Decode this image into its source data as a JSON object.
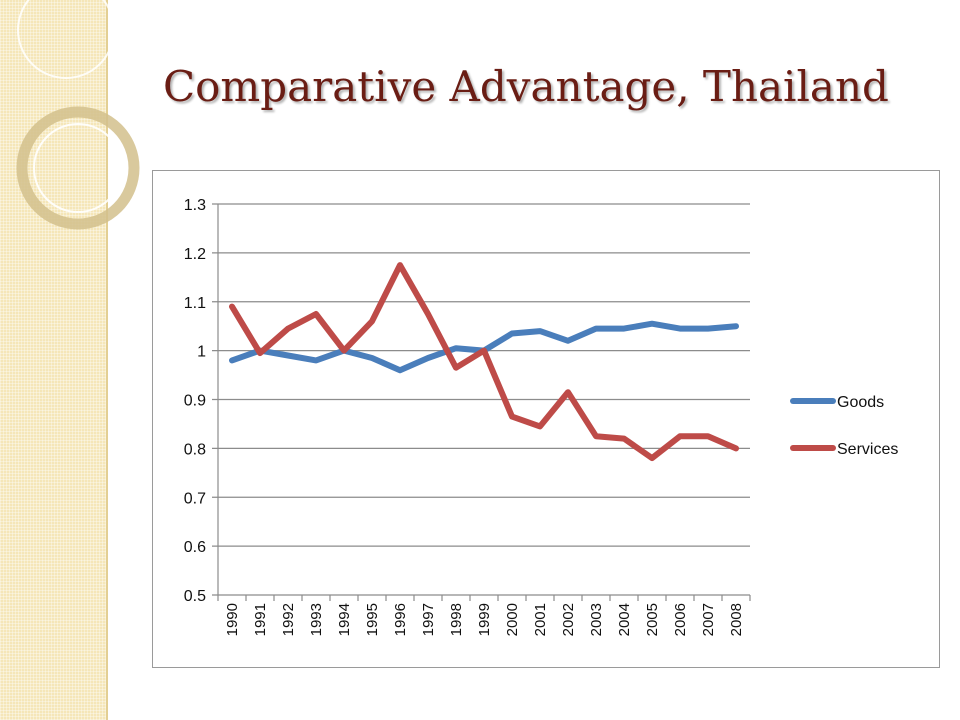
{
  "slide": {
    "title": "Comparative Advantage, Thailand"
  },
  "colors": {
    "goods": "#4a7ebb",
    "services": "#be4b48",
    "title": "#6a1d14",
    "grid": "#8c8c8c"
  },
  "chart_data": {
    "type": "line",
    "title": "",
    "xlabel": "",
    "ylabel": "",
    "x": [
      "1990",
      "1991",
      "1992",
      "1993",
      "1994",
      "1995",
      "1996",
      "1997",
      "1998",
      "1999",
      "2000",
      "2001",
      "2002",
      "2003",
      "2004",
      "2005",
      "2006",
      "2007",
      "2008"
    ],
    "ylim": [
      0.5,
      1.3
    ],
    "yticks": [
      "0.5",
      "0.6",
      "0.7",
      "0.8",
      "0.9",
      "1",
      "1.1",
      "1.2",
      "1.3"
    ],
    "grid": true,
    "legend_position": "right",
    "series": [
      {
        "name": "Goods",
        "values": [
          0.98,
          1.0,
          0.99,
          0.98,
          1.0,
          0.985,
          0.96,
          0.985,
          1.005,
          1.0,
          1.035,
          1.04,
          1.02,
          1.045,
          1.045,
          1.055,
          1.045,
          1.045,
          1.05
        ]
      },
      {
        "name": "Services",
        "values": [
          1.09,
          0.995,
          1.045,
          1.075,
          1.0,
          1.06,
          1.175,
          1.075,
          0.965,
          1.0,
          0.865,
          0.845,
          0.915,
          0.825,
          0.82,
          0.78,
          0.825,
          0.825,
          0.8
        ]
      }
    ]
  }
}
